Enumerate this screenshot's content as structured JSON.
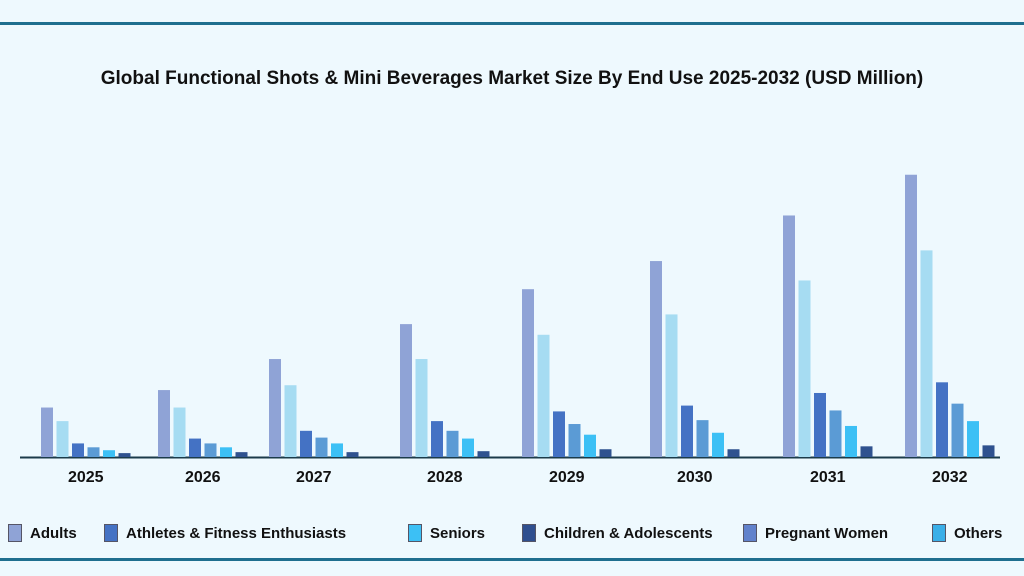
{
  "chart_data": {
    "type": "bar",
    "title": "Global Functional Shots & Mini Beverages Market Size By End Use 2025-2032 (USD Million)",
    "categories": [
      "2025",
      "2026",
      "2027",
      "2028",
      "2029",
      "2030",
      "2031",
      "2032"
    ],
    "ylim": [
      0,
      300
    ],
    "grid": false,
    "legend_placement": "bottom",
    "series": [
      {
        "name": "Adults",
        "color": "#8fa3d6",
        "values": [
          51,
          69,
          101,
          137,
          173,
          202,
          249,
          291
        ]
      },
      {
        "name": "Athletes & Fitness Enthusiasts",
        "color": "#a6dcf2",
        "values": [
          37,
          51,
          74,
          101,
          126,
          147,
          182,
          213
        ]
      },
      {
        "name": "Seniors",
        "color": "#4472c4",
        "values": [
          14,
          19,
          27,
          37,
          47,
          53,
          66,
          77
        ]
      },
      {
        "name": "Children & Adolescents",
        "color": "#5b9bd5",
        "values": [
          10,
          14,
          20,
          27,
          34,
          38,
          48,
          55
        ]
      },
      {
        "name": "Pregnant Women",
        "color": "#3cc0f5",
        "values": [
          7,
          10,
          14,
          19,
          23,
          25,
          32,
          37
        ]
      },
      {
        "name": "Others",
        "color": "#2f528f",
        "values": [
          4,
          5,
          5,
          6,
          8,
          8,
          11,
          12
        ]
      }
    ],
    "legend_swatch_colors": [
      "#8fa3d6",
      "#4472c4",
      "#3cc0f5",
      "#2f4f8f",
      "#6182cc",
      "#3aafe8"
    ]
  }
}
